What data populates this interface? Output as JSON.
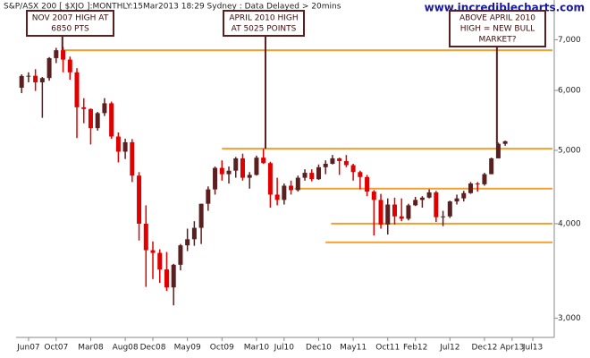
{
  "chart_data": {
    "type": "candlestick",
    "title": "S&P/ASX 200 [ $XJO ]:MONTHLY:15Mar2013 18:29 Sydney : Data Delayed > 20mins",
    "source": "www.incrediblecharts.com",
    "log_scale": true,
    "up_color": "#5c1f1f",
    "down_color": "#e00000",
    "level_color": "#f0a030",
    "x": [
      -1,
      0,
      1,
      2,
      3,
      4,
      5,
      6,
      7,
      8,
      9,
      10,
      11,
      12,
      13,
      14,
      15,
      16,
      17,
      18,
      19,
      20,
      21,
      22,
      23,
      24,
      25,
      26,
      27,
      28,
      29,
      30,
      31,
      32,
      33,
      34,
      35,
      36,
      37,
      38,
      39,
      40,
      41,
      42,
      43,
      44,
      45,
      46,
      47,
      48,
      49,
      50,
      51,
      52,
      53,
      54,
      55,
      56,
      57,
      58,
      59,
      60,
      61,
      62,
      63,
      64,
      65,
      66,
      67,
      68,
      69
    ],
    "open": [
      6050,
      6270,
      6274,
      6150,
      6230,
      6620,
      6780,
      6590,
      6340,
      5700,
      5670,
      5350,
      5600,
      5770,
      5215,
      4980,
      5125,
      4630,
      4000,
      3690,
      3660,
      3480,
      3295,
      3530,
      3745,
      3815,
      3950,
      4250,
      4440,
      4740,
      4650,
      4700,
      4880,
      4600,
      4640,
      4890,
      4810,
      4370,
      4300,
      4490,
      4430,
      4600,
      4670,
      4580,
      4750,
      4800,
      4880,
      4840,
      4780,
      4680,
      4610,
      4410,
      4300,
      3990,
      4240,
      4090,
      4060,
      4230,
      4300,
      4330,
      4400,
      4080,
      4090,
      4280,
      4320,
      4390,
      4520,
      4510,
      4650,
      4880,
      5100
    ],
    "high": [
      6300,
      6340,
      6400,
      6250,
      6640,
      6830,
      6850,
      6650,
      6420,
      5860,
      5680,
      5620,
      5860,
      5800,
      5280,
      5180,
      5175,
      4680,
      4230,
      3790,
      3700,
      3670,
      3540,
      3760,
      3940,
      4030,
      4250,
      4480,
      4760,
      4850,
      4760,
      4900,
      4950,
      4680,
      4920,
      5025,
      4830,
      4600,
      4520,
      4560,
      4630,
      4720,
      4720,
      4790,
      4850,
      4930,
      4890,
      4930,
      4800,
      4700,
      4640,
      4430,
      4380,
      4320,
      4330,
      4320,
      4250,
      4340,
      4350,
      4440,
      4420,
      4160,
      4290,
      4370,
      4420,
      4540,
      4540,
      4670,
      4890,
      5120,
      5150
    ],
    "low": [
      5950,
      6150,
      5990,
      5520,
      6180,
      6520,
      6340,
      6200,
      5190,
      5430,
      5090,
      5310,
      5550,
      5180,
      4820,
      4870,
      4540,
      3800,
      3300,
      3380,
      3340,
      3260,
      3120,
      3470,
      3680,
      3740,
      3760,
      4160,
      4370,
      4560,
      4520,
      4600,
      4560,
      4450,
      4630,
      4800,
      4200,
      4230,
      4240,
      4370,
      4410,
      4560,
      4550,
      4570,
      4650,
      4790,
      4640,
      4750,
      4560,
      4440,
      4350,
      3860,
      3940,
      3870,
      3990,
      4030,
      4040,
      4220,
      4200,
      4320,
      4020,
      3970,
      4070,
      4240,
      4280,
      4380,
      4410,
      4490,
      4650,
      4880,
      5070
    ],
    "close": [
      6270,
      6274,
      6150,
      6230,
      6620,
      6780,
      6590,
      6340,
      5700,
      5670,
      5350,
      5600,
      5770,
      5215,
      4980,
      5125,
      4630,
      4000,
      3690,
      3660,
      3480,
      3295,
      3530,
      3745,
      3815,
      3950,
      4250,
      4440,
      4740,
      4650,
      4700,
      4880,
      4600,
      4640,
      4890,
      4810,
      4370,
      4300,
      4490,
      4430,
      4600,
      4670,
      4580,
      4750,
      4800,
      4880,
      4840,
      4780,
      4680,
      4610,
      4410,
      4300,
      3990,
      4240,
      4090,
      4060,
      4230,
      4300,
      4330,
      4400,
      4080,
      4090,
      4280,
      4320,
      4390,
      4520,
      4510,
      4650,
      4880,
      5100,
      5140
    ],
    "xlim": [
      -1.8,
      76.1
    ],
    "ylim": [
      2830,
      7900
    ],
    "yticks": [
      {
        "value": 3000,
        "label": "3,000"
      },
      {
        "value": 4000,
        "label": "4,000"
      },
      {
        "value": 5000,
        "label": "5,000"
      },
      {
        "value": 6000,
        "label": "6,000"
      },
      {
        "value": 7000,
        "label": "7,000"
      }
    ],
    "xticks": [
      {
        "value": 0,
        "label": "Jun07"
      },
      {
        "value": 4,
        "label": "Oct07"
      },
      {
        "value": 9,
        "label": "Mar08"
      },
      {
        "value": 14,
        "label": "Aug08"
      },
      {
        "value": 18,
        "label": "Dec08"
      },
      {
        "value": 23,
        "label": "May09"
      },
      {
        "value": 28,
        "label": "Oct09"
      },
      {
        "value": 33,
        "label": "Mar10"
      },
      {
        "value": 37,
        "label": "Jul10"
      },
      {
        "value": 42,
        "label": "Dec10"
      },
      {
        "value": 47,
        "label": "May11"
      },
      {
        "value": 52,
        "label": "Oct11"
      },
      {
        "value": 56,
        "label": "Feb12"
      },
      {
        "value": 61,
        "label": "Jul12"
      },
      {
        "value": 66,
        "label": "Dec12"
      },
      {
        "value": 70,
        "label": "Apr13"
      },
      {
        "value": 73,
        "label": "Jul13"
      }
    ],
    "levels": [
      {
        "value": 6780,
        "from": 5
      },
      {
        "value": 5025,
        "from": 28
      },
      {
        "value": 4450,
        "from": 38.5
      },
      {
        "value": 4000,
        "from": 43.8
      },
      {
        "value": 3780,
        "from": 43
      }
    ],
    "annotations": [
      {
        "text": [
          "NOV 2007 HIGH AT",
          "6850 PTS"
        ],
        "x": 4.9,
        "y": 6780
      },
      {
        "text": [
          "APRIL 2010 HIGH",
          "AT 5025 POINTS"
        ],
        "x": 34.3,
        "y": 5025
      },
      {
        "text": [
          "ABOVE APRIL 2010",
          "HIGH = NEW BULL",
          "MARKET?"
        ],
        "x": 67.8,
        "y": 5100
      }
    ]
  }
}
